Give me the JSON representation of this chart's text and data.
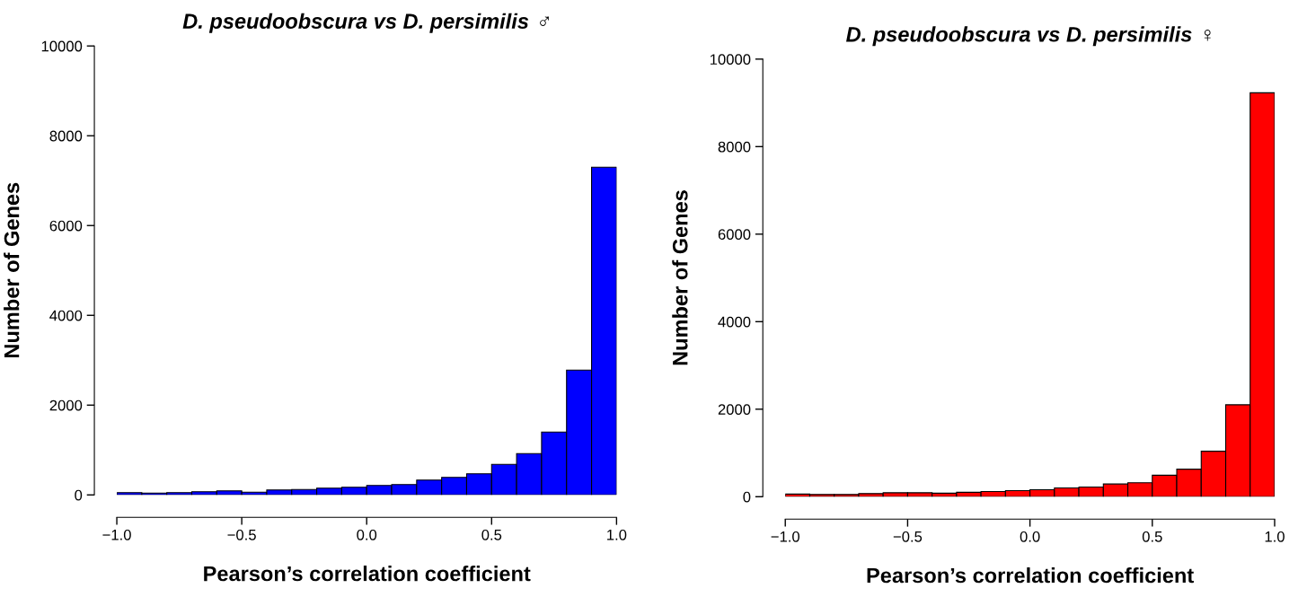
{
  "chart_data": [
    {
      "type": "histogram",
      "title": "D. pseudoobscura vs D. persimilis ♂",
      "xlabel": "Pearson’s correlation coefficient",
      "ylabel": "Number of Genes",
      "color": "#0000ff",
      "bins": [
        -1.0,
        -0.9,
        -0.8,
        -0.7,
        -0.6,
        -0.5,
        -0.4,
        -0.3,
        -0.2,
        -0.1,
        0.0,
        0.1,
        0.2,
        0.3,
        0.4,
        0.5,
        0.6,
        0.7,
        0.8,
        0.9,
        1.0
      ],
      "values": [
        50,
        40,
        50,
        70,
        90,
        60,
        110,
        120,
        150,
        170,
        210,
        230,
        330,
        390,
        470,
        680,
        920,
        1400,
        2780,
        7300
      ],
      "xlim": [
        -1.0,
        1.0
      ],
      "xticks": [
        {
          "value": -1.0,
          "label": "−1.0"
        },
        {
          "value": -0.5,
          "label": "−0.5"
        },
        {
          "value": 0.0,
          "label": "0.0"
        },
        {
          "value": 0.5,
          "label": "0.5"
        },
        {
          "value": 1.0,
          "label": "1.0"
        }
      ],
      "ylim": [
        0,
        10000
      ],
      "yticks": [
        0,
        2000,
        4000,
        6000,
        8000,
        10000
      ],
      "grid": false,
      "legend": false
    },
    {
      "type": "histogram",
      "title": "D. pseudoobscura vs D. persimilis ♀",
      "xlabel": "Pearson’s correlation coefficient",
      "ylabel": "Number of Genes",
      "color": "#ff0000",
      "bins": [
        -1.0,
        -0.9,
        -0.8,
        -0.7,
        -0.6,
        -0.5,
        -0.4,
        -0.3,
        -0.2,
        -0.1,
        0.0,
        0.1,
        0.2,
        0.3,
        0.4,
        0.5,
        0.6,
        0.7,
        0.8,
        0.9,
        1.0
      ],
      "values": [
        60,
        50,
        50,
        70,
        90,
        90,
        80,
        100,
        120,
        140,
        160,
        200,
        220,
        290,
        320,
        490,
        630,
        1040,
        2100,
        9230
      ],
      "xlim": [
        -1.0,
        1.0
      ],
      "xticks": [
        {
          "value": -1.0,
          "label": "−1.0"
        },
        {
          "value": -0.5,
          "label": "−0.5"
        },
        {
          "value": 0.0,
          "label": "0.0"
        },
        {
          "value": 0.5,
          "label": "0.5"
        },
        {
          "value": 1.0,
          "label": "1.0"
        }
      ],
      "ylim": [
        0,
        10000
      ],
      "yticks": [
        0,
        2000,
        4000,
        6000,
        8000,
        10000
      ],
      "grid": false,
      "legend": false
    }
  ]
}
